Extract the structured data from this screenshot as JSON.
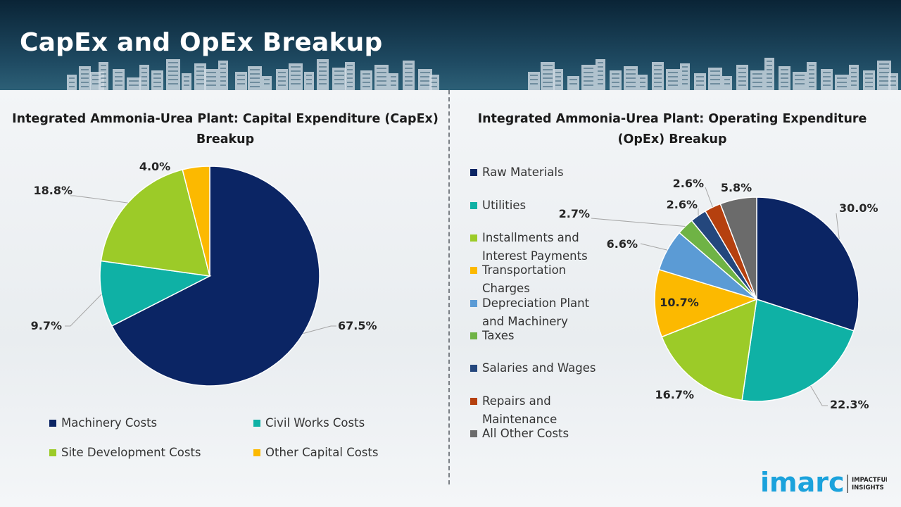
{
  "header": {
    "title": "CapEx and OpEx Breakup"
  },
  "logo": {
    "word": "imarc",
    "tagline_line1": "IMPACTFUL",
    "tagline_line2": "INSIGHTS"
  },
  "colors": {
    "navy": "#0b2564",
    "teal": "#0fb1a5",
    "green": "#9ccb28",
    "yellow": "#fcb900",
    "blue": "#5b9bd5",
    "midgreen": "#6fb345",
    "darknavy": "#24477d",
    "rust": "#b5400f",
    "gray": "#6b6b6b"
  },
  "chart_data": [
    {
      "type": "pie",
      "title": "Integrated Ammonia-Urea Plant: Capital Expenditure (CapEx) Breakup",
      "title_line1": "Integrated Ammonia-Urea Plant: Capital Expenditure (CapEx)",
      "title_line2": "Breakup",
      "categories": [
        "Machinery Costs",
        "Civil Works Costs",
        "Site Development Costs",
        "Other Capital Costs"
      ],
      "values": [
        67.5,
        9.7,
        18.8,
        4.0
      ],
      "labels": [
        "67.5%",
        "9.7%",
        "18.8%",
        "4.0%"
      ],
      "colors": [
        "#0b2564",
        "#0fb1a5",
        "#9ccb28",
        "#fcb900"
      ],
      "legend": "bottom"
    },
    {
      "type": "pie",
      "title": "Integrated Ammonia-Urea Plant: Operating Expenditure (OpEx) Breakup",
      "title_line1": "Integrated Ammonia-Urea Plant: Operating Expenditure",
      "title_line2": "(OpEx) Breakup",
      "categories": [
        "Raw Materials",
        "Utilities",
        "Installments and Interest Payments",
        "Transportation Charges",
        "Depreciation Plant and Machinery",
        "Taxes",
        "Salaries and Wages",
        "Repairs and Maintenance",
        "All Other Costs"
      ],
      "legend_lines": [
        [
          "Raw Materials"
        ],
        [
          "Utilities"
        ],
        [
          "Installments and",
          "Interest Payments"
        ],
        [
          "Transportation",
          "Charges"
        ],
        [
          "Depreciation Plant",
          "and Machinery"
        ],
        [
          "Taxes"
        ],
        [
          "Salaries and Wages"
        ],
        [
          "Repairs and",
          "Maintenance"
        ],
        [
          "All Other Costs"
        ]
      ],
      "values": [
        30.0,
        22.3,
        16.7,
        10.7,
        6.6,
        2.7,
        2.6,
        2.6,
        5.8
      ],
      "labels": [
        "30.0%",
        "22.3%",
        "16.7%",
        "10.7%",
        "6.6%",
        "2.7%",
        "2.6%",
        "2.6%",
        "5.8%"
      ],
      "colors": [
        "#0b2564",
        "#0fb1a5",
        "#9ccb28",
        "#fcb900",
        "#5b9bd5",
        "#6fb345",
        "#24477d",
        "#b5400f",
        "#6b6b6b"
      ],
      "legend": "left"
    }
  ]
}
